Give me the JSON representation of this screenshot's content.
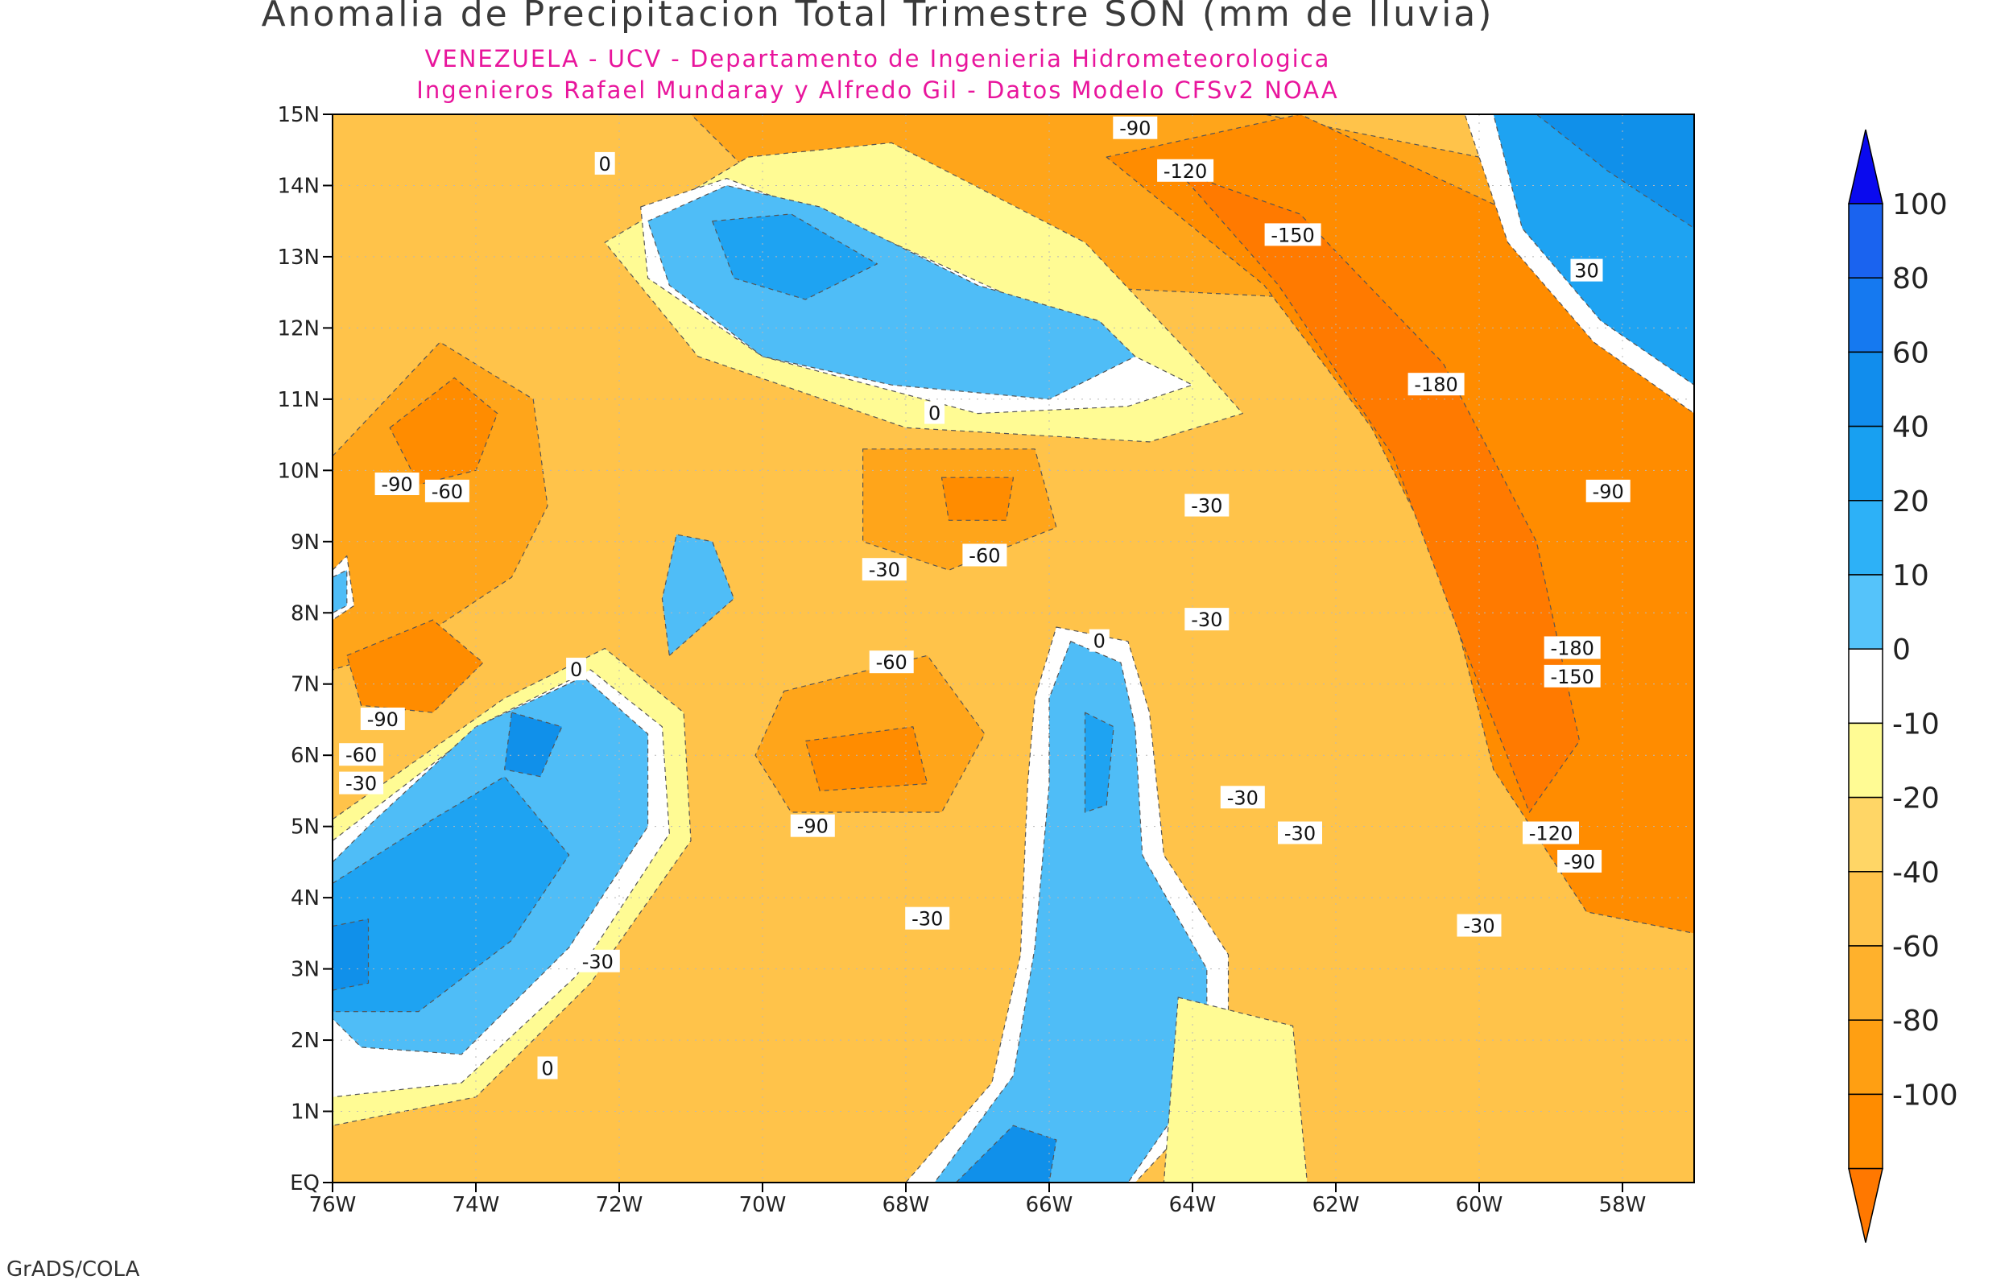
{
  "title": "Anomalia de Precipitacion Total Trimestre SON (mm de lluvia)",
  "subtitle1": "VENEZUELA - UCV - Departamento de Ingenieria Hidrometeorologica",
  "subtitle2": "Ingenieros Rafael Mundaray y Alfredo Gil - Datos Modelo CFSv2 NOAA",
  "footer": "GrADS/COLA",
  "map": {
    "lon_range": [
      -76,
      -57
    ],
    "lat_range": [
      0,
      15
    ],
    "lat_ticks": [
      "EQ",
      "1N",
      "2N",
      "3N",
      "4N",
      "5N",
      "6N",
      "7N",
      "8N",
      "9N",
      "10N",
      "11N",
      "12N",
      "13N",
      "14N",
      "15N"
    ],
    "lon_ticks": [
      "76W",
      "74W",
      "72W",
      "70W",
      "68W",
      "66W",
      "64W",
      "62W",
      "60W",
      "58W"
    ],
    "lon_tick_values": [
      -76,
      -74,
      -72,
      -70,
      -68,
      -66,
      -64,
      -62,
      -60,
      -58
    ],
    "background_fill": "#ffc34a",
    "regions": [
      {
        "name": "nw-colombia-orange",
        "value": -60,
        "color": "#ffa51a",
        "pts": [
          [
            -76,
            10.2
          ],
          [
            -74.5,
            11.8
          ],
          [
            -73.2,
            11
          ],
          [
            -73,
            9.5
          ],
          [
            -73.5,
            8.5
          ],
          [
            -75,
            7.5
          ],
          [
            -76,
            7.2
          ]
        ]
      },
      {
        "name": "nw-colombia-core",
        "value": -90,
        "color": "#ff8c00",
        "pts": [
          [
            -75.2,
            10.6
          ],
          [
            -74.3,
            11.3
          ],
          [
            -73.7,
            10.8
          ],
          [
            -74,
            10
          ],
          [
            -74.8,
            9.8
          ]
        ]
      },
      {
        "name": "w-colombia-core",
        "value": -90,
        "color": "#ff8c00",
        "pts": [
          [
            -75.8,
            7.4
          ],
          [
            -74.6,
            7.9
          ],
          [
            -73.9,
            7.3
          ],
          [
            -74.6,
            6.6
          ],
          [
            -75.6,
            6.7
          ]
        ]
      },
      {
        "name": "caribbean-north-orange",
        "value": -60,
        "color": "#ffa51a",
        "pts": [
          [
            -71,
            15
          ],
          [
            -63,
            15
          ],
          [
            -59,
            14.2
          ],
          [
            -62,
            12.4
          ],
          [
            -66,
            12.6
          ],
          [
            -70,
            14
          ]
        ]
      },
      {
        "name": "east-orange",
        "value": -90,
        "color": "#ff8c00",
        "pts": [
          [
            -65.2,
            14.4
          ],
          [
            -62.5,
            15
          ],
          [
            -59.5,
            13.6
          ],
          [
            -57,
            11
          ],
          [
            -57,
            3.5
          ],
          [
            -58.5,
            3.8
          ],
          [
            -59.8,
            5.8
          ],
          [
            -60.5,
            8.6
          ],
          [
            -61.5,
            10.6
          ],
          [
            -63,
            12.6
          ]
        ]
      },
      {
        "name": "east-core",
        "value": -150,
        "color": "#ff7a00",
        "pts": [
          [
            -64.2,
            14.2
          ],
          [
            -62.5,
            13.6
          ],
          [
            -60.5,
            11.5
          ],
          [
            -59.2,
            9
          ],
          [
            -58.6,
            6.2
          ],
          [
            -59.3,
            5.2
          ],
          [
            -60.2,
            7.5
          ],
          [
            -61.2,
            10.2
          ],
          [
            -62.8,
            12.6
          ]
        ]
      },
      {
        "name": "central-andes-orange",
        "value": -60,
        "color": "#ffa51a",
        "pts": [
          [
            -68.6,
            10.3
          ],
          [
            -66.2,
            10.3
          ],
          [
            -65.9,
            9.2
          ],
          [
            -67.4,
            8.6
          ],
          [
            -68.6,
            9
          ]
        ]
      },
      {
        "name": "central-andes-core",
        "value": -90,
        "color": "#ff8c00",
        "pts": [
          [
            -67.5,
            9.9
          ],
          [
            -66.5,
            9.9
          ],
          [
            -66.6,
            9.3
          ],
          [
            -67.4,
            9.3
          ]
        ]
      },
      {
        "name": "apure-orange",
        "value": -60,
        "color": "#ffa51a",
        "pts": [
          [
            -69.7,
            6.9
          ],
          [
            -67.7,
            7.4
          ],
          [
            -66.9,
            6.3
          ],
          [
            -67.5,
            5.2
          ],
          [
            -69.6,
            5.2
          ],
          [
            -70.1,
            6
          ]
        ]
      },
      {
        "name": "apure-core",
        "value": -90,
        "color": "#ff8c00",
        "pts": [
          [
            -69.4,
            6.2
          ],
          [
            -67.9,
            6.4
          ],
          [
            -67.7,
            5.6
          ],
          [
            -69.2,
            5.5
          ]
        ]
      },
      {
        "name": "northeast-ring-10",
        "value": -10,
        "color": "#fffb94",
        "pts": [
          [
            -70.2,
            14.4
          ],
          [
            -68.2,
            14.6
          ],
          [
            -65.5,
            13.2
          ],
          [
            -64,
            11.6
          ],
          [
            -63.3,
            10.8
          ],
          [
            -64.6,
            10.4
          ],
          [
            -68,
            10.6
          ],
          [
            -70.9,
            11.6
          ],
          [
            -72.2,
            13.2
          ]
        ]
      },
      {
        "name": "caribbean-white",
        "value": 0,
        "color": "#ffffff",
        "pts": [
          [
            -71.7,
            13.7
          ],
          [
            -70.5,
            14.1
          ],
          [
            -68.2,
            13.2
          ],
          [
            -66,
            12.2
          ],
          [
            -64,
            11.2
          ],
          [
            -64.9,
            10.9
          ],
          [
            -67,
            10.8
          ],
          [
            -70,
            11.6
          ],
          [
            -71.6,
            12.7
          ]
        ]
      },
      {
        "name": "caribbean-blue",
        "value": 10,
        "color": "#4fbdf7",
        "pts": [
          [
            -71.6,
            13.5
          ],
          [
            -70.5,
            14
          ],
          [
            -69.2,
            13.7
          ],
          [
            -67,
            12.6
          ],
          [
            -65.3,
            12.1
          ],
          [
            -64.8,
            11.6
          ],
          [
            -66,
            11
          ],
          [
            -68.2,
            11.2
          ],
          [
            -70,
            11.6
          ],
          [
            -71.3,
            12.6
          ]
        ]
      },
      {
        "name": "caribbean-blue-core",
        "value": 20,
        "color": "#1ea3f2",
        "pts": [
          [
            -70.7,
            13.5
          ],
          [
            -69.6,
            13.6
          ],
          [
            -68.4,
            12.9
          ],
          [
            -69.4,
            12.4
          ],
          [
            -70.4,
            12.7
          ]
        ]
      },
      {
        "name": "lake-maracaibo-blue",
        "value": 10,
        "color": "#4fbdf7",
        "pts": [
          [
            -71.3,
            7.4
          ],
          [
            -70.4,
            8.2
          ],
          [
            -70.7,
            9
          ],
          [
            -71.2,
            9.1
          ],
          [
            -71.4,
            8.2
          ]
        ]
      },
      {
        "name": "colombia-sw-yellow",
        "value": -10,
        "color": "#fffb94",
        "pts": [
          [
            -76,
            5.1
          ],
          [
            -73.6,
            6.8
          ],
          [
            -72.2,
            7.5
          ],
          [
            -71.1,
            6.6
          ],
          [
            -71,
            4.8
          ],
          [
            -72.4,
            2.8
          ],
          [
            -74,
            1.2
          ],
          [
            -76,
            0.8
          ]
        ]
      },
      {
        "name": "colombia-sw-white",
        "value": 0,
        "color": "#ffffff",
        "pts": [
          [
            -76,
            4.8
          ],
          [
            -73.8,
            6.5
          ],
          [
            -72.4,
            7.2
          ],
          [
            -71.4,
            6.4
          ],
          [
            -71.3,
            4.9
          ],
          [
            -72.6,
            2.9
          ],
          [
            -74.2,
            1.4
          ],
          [
            -76,
            1.2
          ]
        ]
      },
      {
        "name": "colombia-sw-blue",
        "value": 10,
        "color": "#4fbdf7",
        "pts": [
          [
            -76,
            4.5
          ],
          [
            -75.4,
            5.1
          ],
          [
            -74,
            6.4
          ],
          [
            -72.5,
            7.1
          ],
          [
            -71.6,
            6.3
          ],
          [
            -71.6,
            5
          ],
          [
            -72.7,
            3.3
          ],
          [
            -74.2,
            1.8
          ],
          [
            -75.6,
            1.9
          ],
          [
            -76,
            2.3
          ]
        ]
      },
      {
        "name": "colombia-sw-core-a",
        "value": 20,
        "color": "#1ea3f2",
        "pts": [
          [
            -76,
            4.2
          ],
          [
            -74.6,
            5.1
          ],
          [
            -73.6,
            5.7
          ],
          [
            -72.7,
            4.6
          ],
          [
            -73.5,
            3.4
          ],
          [
            -74.8,
            2.4
          ],
          [
            -76,
            2.4
          ]
        ]
      },
      {
        "name": "colombia-sw-core-b",
        "value": 40,
        "color": "#1090ea",
        "pts": [
          [
            -73.5,
            6.6
          ],
          [
            -72.8,
            6.4
          ],
          [
            -73.1,
            5.7
          ],
          [
            -73.6,
            5.8
          ]
        ]
      },
      {
        "name": "colombia-sw-core-c",
        "value": 40,
        "color": "#1090ea",
        "pts": [
          [
            -76,
            3.6
          ],
          [
            -75.5,
            3.7
          ],
          [
            -75.5,
            2.8
          ],
          [
            -76,
            2.7
          ]
        ]
      },
      {
        "name": "orinoco-white",
        "value": 0,
        "color": "#ffffff",
        "pts": [
          [
            -65.9,
            7.8
          ],
          [
            -64.9,
            7.6
          ],
          [
            -64.6,
            6.6
          ],
          [
            -64.4,
            4.6
          ],
          [
            -63.5,
            3.2
          ],
          [
            -63.5,
            1.4
          ],
          [
            -64.8,
            0
          ],
          [
            -68,
            0
          ],
          [
            -66.8,
            1.4
          ],
          [
            -66.4,
            3.2
          ],
          [
            -66.3,
            5.6
          ],
          [
            -66.2,
            6.8
          ]
        ]
      },
      {
        "name": "orinoco-blue",
        "value": 10,
        "color": "#4fbdf7",
        "pts": [
          [
            -65.7,
            7.6
          ],
          [
            -65,
            7.3
          ],
          [
            -64.8,
            6.4
          ],
          [
            -64.7,
            4.6
          ],
          [
            -63.8,
            3
          ],
          [
            -63.8,
            1.6
          ],
          [
            -64.9,
            0
          ],
          [
            -67.6,
            0
          ],
          [
            -66.5,
            1.5
          ],
          [
            -66.2,
            3.3
          ],
          [
            -66,
            5.6
          ],
          [
            -66,
            6.8
          ]
        ]
      },
      {
        "name": "orinoco-core",
        "value": 20,
        "color": "#1ea3f2",
        "pts": [
          [
            -65.5,
            6.6
          ],
          [
            -65.1,
            6.4
          ],
          [
            -65.2,
            5.3
          ],
          [
            -65.5,
            5.2
          ]
        ]
      },
      {
        "name": "amazon-core",
        "value": 40,
        "color": "#1090ea",
        "pts": [
          [
            -67.3,
            0
          ],
          [
            -66.5,
            0.8
          ],
          [
            -65.9,
            0.6
          ],
          [
            -66,
            0
          ]
        ]
      },
      {
        "name": "ne-atlantic-white",
        "value": 0,
        "color": "#ffffff",
        "pts": [
          [
            -60.2,
            15
          ],
          [
            -57,
            15
          ],
          [
            -57,
            10.8
          ],
          [
            -58.4,
            11.8
          ],
          [
            -59.6,
            13.2
          ]
        ]
      },
      {
        "name": "ne-atlantic-blue",
        "value": 20,
        "color": "#1ea3f2",
        "pts": [
          [
            -59.8,
            15
          ],
          [
            -57,
            15
          ],
          [
            -57,
            11.2
          ],
          [
            -58.3,
            12.1
          ],
          [
            -59.4,
            13.4
          ]
        ]
      },
      {
        "name": "ne-atlantic-core",
        "value": 40,
        "color": "#1090ea",
        "pts": [
          [
            -59.2,
            15
          ],
          [
            -57,
            15
          ],
          [
            -57,
            13.4
          ],
          [
            -58.2,
            14.2
          ]
        ]
      },
      {
        "name": "southeast-yellow",
        "value": -10,
        "color": "#fffb94",
        "pts": [
          [
            -64.2,
            2.6
          ],
          [
            -62.6,
            2.2
          ],
          [
            -62.4,
            0
          ],
          [
            -64.4,
            0
          ]
        ]
      },
      {
        "name": "west-white",
        "value": 0,
        "color": "#ffffff",
        "pts": [
          [
            -76,
            8.6
          ],
          [
            -75.8,
            8.8
          ],
          [
            -75.7,
            8.1
          ],
          [
            -76,
            7.9
          ]
        ]
      },
      {
        "name": "west-blue",
        "value": 10,
        "color": "#4fbdf7",
        "pts": [
          [
            -76,
            8.5
          ],
          [
            -75.8,
            8.6
          ],
          [
            -75.8,
            8.1
          ],
          [
            -76,
            8
          ]
        ]
      }
    ],
    "contour_labels": [
      {
        "text": "-90",
        "lon": -64.8,
        "lat": 14.8
      },
      {
        "text": "-120",
        "lon": -64.1,
        "lat": 14.2
      },
      {
        "text": "-150",
        "lon": -62.6,
        "lat": 13.3
      },
      {
        "text": "-180",
        "lon": -60.6,
        "lat": 11.2
      },
      {
        "text": "-90",
        "lon": -58.2,
        "lat": 9.7
      },
      {
        "text": "-180",
        "lon": -58.7,
        "lat": 7.5
      },
      {
        "text": "-150",
        "lon": -58.7,
        "lat": 7.1
      },
      {
        "text": "-120",
        "lon": -59,
        "lat": 4.9
      },
      {
        "text": "-90",
        "lon": -58.6,
        "lat": 4.5
      },
      {
        "text": "-30",
        "lon": -60,
        "lat": 3.6
      },
      {
        "text": "-30",
        "lon": -62.5,
        "lat": 4.9
      },
      {
        "text": "-30",
        "lon": -63.3,
        "lat": 5.4
      },
      {
        "text": "-30",
        "lon": -63.8,
        "lat": 9.5
      },
      {
        "text": "-30",
        "lon": -63.8,
        "lat": 7.9
      },
      {
        "text": "-60",
        "lon": -66.9,
        "lat": 8.8
      },
      {
        "text": "-30",
        "lon": -68.3,
        "lat": 8.6
      },
      {
        "text": "-60",
        "lon": -68.2,
        "lat": 7.3
      },
      {
        "text": "-90",
        "lon": -69.3,
        "lat": 5
      },
      {
        "text": "-30",
        "lon": -67.7,
        "lat": 3.7
      },
      {
        "text": "-30",
        "lon": -72.3,
        "lat": 3.1
      },
      {
        "text": "-90",
        "lon": -75.1,
        "lat": 9.8
      },
      {
        "text": "-60",
        "lon": -74.4,
        "lat": 9.7
      },
      {
        "text": "-90",
        "lon": -75.3,
        "lat": 6.5
      },
      {
        "text": "-60",
        "lon": -75.6,
        "lat": 6
      },
      {
        "text": "-30",
        "lon": -75.6,
        "lat": 5.6
      },
      {
        "text": "0",
        "lon": -72.2,
        "lat": 14.3
      },
      {
        "text": "0",
        "lon": -67.6,
        "lat": 10.8
      },
      {
        "text": "0",
        "lon": -72.6,
        "lat": 7.2
      },
      {
        "text": "0",
        "lon": -65.3,
        "lat": 7.6
      },
      {
        "text": "0",
        "lon": -73,
        "lat": 1.6
      },
      {
        "text": "30",
        "lon": -58.5,
        "lat": 12.8
      }
    ]
  },
  "colorbar": {
    "levels": [
      "100",
      "80",
      "60",
      "40",
      "20",
      "10",
      "0",
      "-10",
      "-20",
      "-40",
      "-60",
      "-80",
      "-100"
    ],
    "colors": [
      "#1a63ef",
      "#1579f0",
      "#118ded",
      "#18a0f1",
      "#2db1f7",
      "#55c3fa",
      "#ffffff",
      "#fffb94",
      "#ffd666",
      "#ffc34a",
      "#ffb12c",
      "#ff9f12",
      "#ff8c00"
    ],
    "top_arrow_color": "#0a0aee",
    "bottom_arrow_color": "#ff7800"
  }
}
